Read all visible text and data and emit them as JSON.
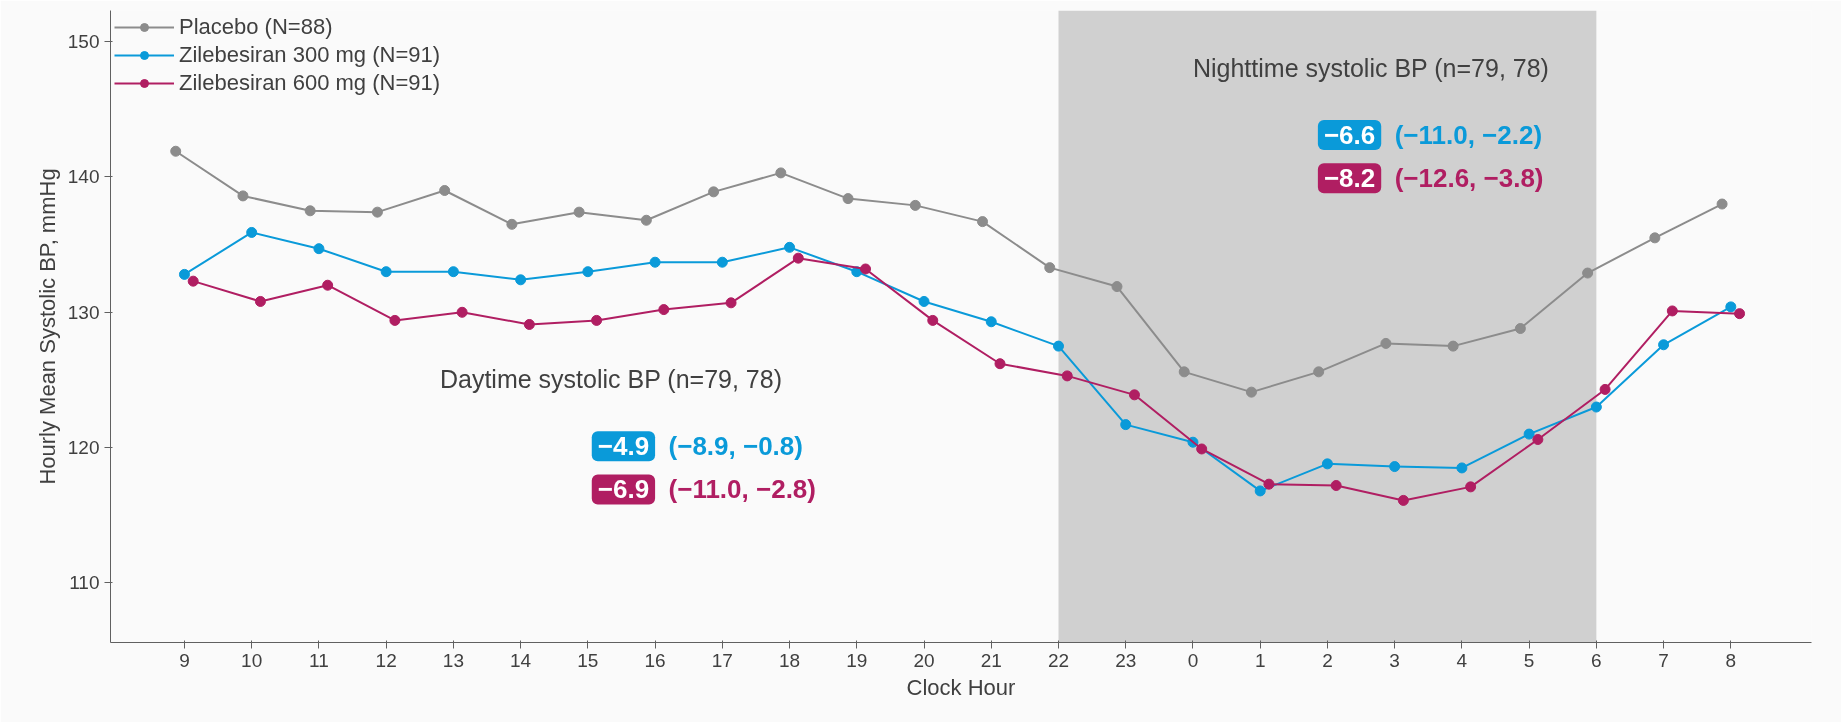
{
  "chart_data": {
    "type": "line",
    "xlabel": "Clock Hour",
    "ylabel": "Hourly Mean Systolic BP, mmHg",
    "categories": [
      "9",
      "10",
      "11",
      "12",
      "13",
      "14",
      "15",
      "16",
      "17",
      "18",
      "19",
      "20",
      "21",
      "22",
      "23",
      "0",
      "1",
      "2",
      "3",
      "4",
      "5",
      "6",
      "7",
      "8"
    ],
    "series": [
      {
        "name": "Placebo (N=88)",
        "color": "#8c8c8c",
        "values": [
          141.9,
          138.6,
          137.5,
          137.4,
          139.0,
          136.5,
          137.4,
          136.8,
          138.9,
          140.3,
          138.4,
          137.9,
          136.7,
          133.3,
          131.9,
          125.6,
          124.1,
          125.6,
          127.7,
          127.5,
          128.8,
          132.9,
          135.5,
          138.0
        ]
      },
      {
        "name": "Zilebesiran 300 mg (N=91)",
        "color": "#0a9ad9",
        "values": [
          132.8,
          135.9,
          134.7,
          133.0,
          133.0,
          132.4,
          133.0,
          133.7,
          133.7,
          134.8,
          133.0,
          130.8,
          129.3,
          127.5,
          121.7,
          120.4,
          116.8,
          118.8,
          118.6,
          118.5,
          121.0,
          123.0,
          127.6,
          130.4
        ]
      },
      {
        "name": "Zilebesiran 600 mg (N=91)",
        "color": "#b01e62",
        "values": [
          132.3,
          130.8,
          132.0,
          129.4,
          130.0,
          129.1,
          129.4,
          130.2,
          130.7,
          134.0,
          133.2,
          129.4,
          126.2,
          125.3,
          123.9,
          119.9,
          117.3,
          117.2,
          116.1,
          117.1,
          120.6,
          124.3,
          130.1,
          129.9
        ]
      }
    ],
    "ylim": [
      105.6,
      152.3
    ],
    "yticks": [
      110,
      120,
      130,
      140,
      150
    ],
    "bands": [
      {
        "axis": "x",
        "from": "22",
        "to": "6",
        "color": "#d0d0d0"
      }
    ],
    "annotations": [
      "Daytime systolic BP (n=79, 78)",
      "−4.9",
      "(−8.9, −0.8)",
      "−6.9",
      "(−11.0, −2.8)",
      "Nighttime systolic BP (n=79, 78)",
      "−6.6",
      "(−11.0, −2.2)",
      "−8.2",
      "(−12.6, −3.8)"
    ],
    "grid": false,
    "legend": "top left",
    "marker": "circle",
    "line_style": "solid"
  }
}
